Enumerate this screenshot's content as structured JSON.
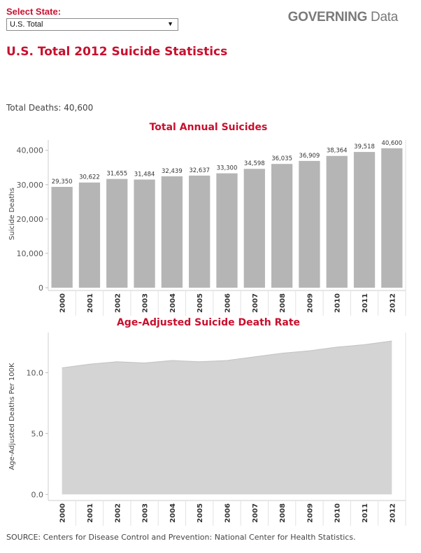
{
  "header": {
    "select_label": "Select State:",
    "selected_state": "U.S. Total",
    "brand_bold": "GOVERNING",
    "brand_light": " Data"
  },
  "page_title": "U.S. Total 2012 Suicide Statistics",
  "total_deaths": "Total Deaths: 40,600",
  "source": "SOURCE: Centers for Disease Control and Prevention: National Center for Health Statistics.",
  "chart_data": [
    {
      "type": "bar",
      "title": "Total Annual Suicides",
      "xlabel": "",
      "ylabel": "Suicide Deaths",
      "ylim": [
        0,
        43000
      ],
      "yticks": [
        0,
        10000,
        20000,
        30000,
        40000
      ],
      "ytick_labels": [
        "0",
        "10,000",
        "20,000",
        "30,000",
        "40,000"
      ],
      "grid": false,
      "color": "#b5b5b5",
      "categories": [
        "2000",
        "2001",
        "2002",
        "2003",
        "2004",
        "2005",
        "2006",
        "2007",
        "2008",
        "2009",
        "2010",
        "2011",
        "2012"
      ],
      "values": [
        29350,
        30622,
        31655,
        31484,
        32439,
        32637,
        33300,
        34598,
        36035,
        36909,
        38364,
        39518,
        40600
      ],
      "data_labels": [
        "29,350",
        "30,622",
        "31,655",
        "31,484",
        "32,439",
        "32,637",
        "33,300",
        "34,598",
        "36,035",
        "36,909",
        "38,364",
        "39,518",
        "40,600"
      ]
    },
    {
      "type": "area",
      "title": "Age-Adjusted Suicide Death Rate",
      "xlabel": "",
      "ylabel": "Age-Adjusted Deaths Per 100K",
      "ylim": [
        -0.5,
        13.3
      ],
      "yticks": [
        0,
        5,
        10
      ],
      "ytick_labels": [
        "0.0",
        "5.0",
        "10.0"
      ],
      "grid": false,
      "color": "#d4d4d4",
      "categories": [
        "2000",
        "2001",
        "2002",
        "2003",
        "2004",
        "2005",
        "2006",
        "2007",
        "2008",
        "2009",
        "2010",
        "2011",
        "2012"
      ],
      "values": [
        10.4,
        10.7,
        10.9,
        10.8,
        11.0,
        10.9,
        11.0,
        11.3,
        11.6,
        11.8,
        12.1,
        12.3,
        12.6
      ]
    }
  ]
}
